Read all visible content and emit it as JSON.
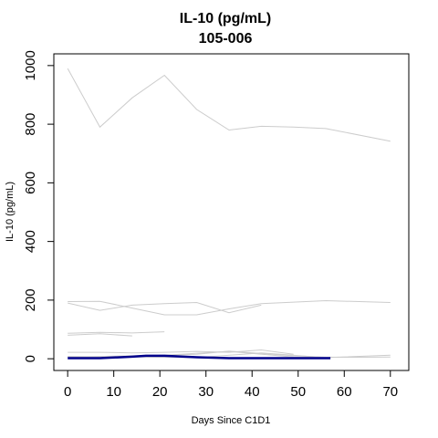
{
  "chart_data": {
    "type": "line",
    "title": "IL-10 (pg/mL)",
    "subtitle": "105-006",
    "xlabel": "Days Since C1D1",
    "ylabel": "IL-10 (pg/mL)",
    "xlim": [
      -3,
      74
    ],
    "ylim": [
      -40,
      1040
    ],
    "xticks": [
      0,
      10,
      20,
      30,
      40,
      50,
      60,
      70
    ],
    "yticks": [
      0,
      200,
      400,
      600,
      800,
      1000
    ],
    "grid": false,
    "legend": "none",
    "background_color": "#cccccc",
    "highlight_color": "#00008b",
    "background_series": [
      {
        "x": [
          0,
          7,
          14,
          21,
          28,
          35,
          42,
          49,
          56,
          70
        ],
        "y": [
          990,
          790,
          890,
          967,
          850,
          780,
          793,
          790,
          785,
          742
        ]
      },
      {
        "x": [
          0,
          7,
          14,
          21,
          28,
          35,
          42,
          56,
          70
        ],
        "y": [
          195,
          196,
          173,
          150,
          150,
          170,
          188,
          198,
          192
        ]
      },
      {
        "x": [
          0,
          7,
          14,
          21,
          28,
          35,
          42
        ],
        "y": [
          190,
          165,
          183,
          188,
          192,
          157,
          183
        ]
      },
      {
        "x": [
          0,
          7,
          14,
          21
        ],
        "y": [
          87,
          90,
          88,
          92
        ]
      },
      {
        "x": [
          0,
          7,
          14
        ],
        "y": [
          80,
          85,
          78
        ]
      },
      {
        "x": [
          0,
          7,
          14,
          21,
          28,
          35,
          42,
          49
        ],
        "y": [
          22,
          22,
          20,
          22,
          25,
          22,
          30,
          15
        ]
      },
      {
        "x": [
          0,
          7,
          14,
          21,
          28,
          35,
          42,
          49,
          56
        ],
        "y": [
          5,
          8,
          10,
          12,
          15,
          26,
          18,
          10,
          5
        ]
      },
      {
        "x": [
          0,
          14,
          28,
          42,
          56,
          70
        ],
        "y": [
          8,
          6,
          4,
          20,
          4,
          12
        ]
      },
      {
        "x": [
          21,
          35,
          49,
          63,
          70
        ],
        "y": [
          12,
          25,
          6,
          5,
          6
        ]
      }
    ],
    "highlight_series": {
      "x": [
        0,
        7,
        14,
        17,
        21,
        28,
        35,
        42,
        49,
        57
      ],
      "y": [
        2,
        2,
        7,
        10,
        10,
        5,
        2,
        2,
        2,
        2
      ]
    }
  }
}
